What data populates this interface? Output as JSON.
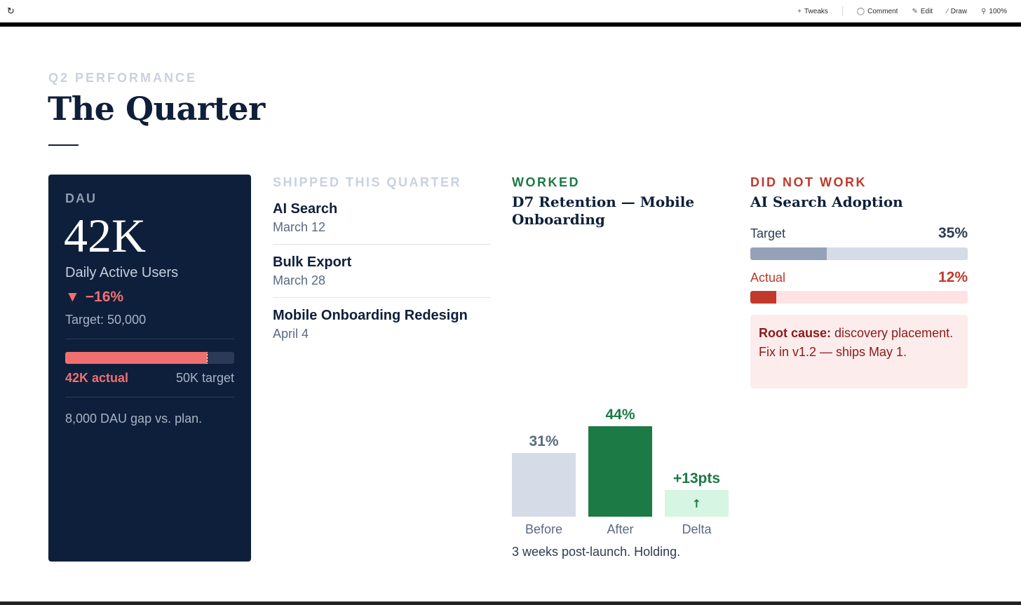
{
  "toolbar": {
    "tweaks": "Tweaks",
    "comment": "Comment",
    "edit": "Edit",
    "draw": "Draw",
    "zoom": "100%"
  },
  "header": {
    "eyebrow": "Q2 PERFORMANCE",
    "title": "The Quarter"
  },
  "dau": {
    "label": "DAU",
    "value": "42K",
    "subtitle": "Daily Active Users",
    "delta": "−16%",
    "target_text": "Target: 50,000",
    "actual_label": "42K actual",
    "target_label": "50K target",
    "actual": 42000,
    "target": 50000,
    "gap_text": "8,000 DAU gap vs. plan.",
    "colors": {
      "bg": "#0e1f3b",
      "accent": "#f07070"
    }
  },
  "shipped": {
    "heading": "SHIPPED THIS QUARTER",
    "items": [
      {
        "name": "AI Search",
        "date": "March 12"
      },
      {
        "name": "Bulk Export",
        "date": "March 28"
      },
      {
        "name": "Mobile Onboarding Redesign",
        "date": "April 4"
      }
    ]
  },
  "worked": {
    "heading": "WORKED",
    "title": "D7 Retention — Mobile Onboarding",
    "note": "3 weeks post-launch. Holding.",
    "delta_icon": "arrow-up-icon"
  },
  "chart_data": {
    "type": "bar",
    "categories": [
      "Before",
      "After",
      "Delta"
    ],
    "values": [
      31,
      44,
      13
    ],
    "data_labels": [
      "31%",
      "44%",
      "+13pts"
    ],
    "colors": [
      "#d6dce7",
      "#1c7a45",
      "#d6f5e2"
    ],
    "label_colors": [
      "#5a6a82",
      "#1c7a45",
      "#1c7a45"
    ],
    "ylim": [
      0,
      44
    ]
  },
  "did_not_work": {
    "heading": "DID NOT WORK",
    "title": "AI Search Adoption",
    "target_label": "Target",
    "target_value": "35%",
    "target_pct": 35,
    "actual_label": "Actual",
    "actual_value": "12%",
    "actual_pct": 12,
    "cause_label": "Root cause:",
    "cause_text": " discovery placement.",
    "fix_text": "Fix in v1.2 — ships May 1."
  }
}
